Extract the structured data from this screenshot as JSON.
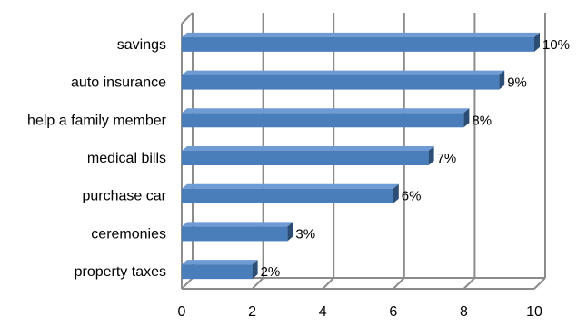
{
  "chart_data": {
    "type": "bar",
    "orientation": "horizontal",
    "style": "3d",
    "categories": [
      "savings",
      "auto insurance",
      "help a family member",
      "medical bills",
      "purchase car",
      "ceremonies",
      "property taxes"
    ],
    "values": [
      10,
      9,
      8,
      7,
      6,
      3,
      2
    ],
    "data_labels": [
      "10%",
      "9%",
      "8%",
      "7%",
      "6%",
      "3%",
      "2%"
    ],
    "xlim": [
      0,
      10
    ],
    "xticks": [
      "0",
      "2",
      "4",
      "6",
      "8",
      "10"
    ],
    "title": "",
    "xlabel": "",
    "ylabel": "",
    "grid": true,
    "legend": "none"
  },
  "colors": {
    "bar_front": "#4a7ebb",
    "bar_top": "#6f9bd4",
    "bar_side": "#2c4d75",
    "grid": "#8c8c8c"
  }
}
